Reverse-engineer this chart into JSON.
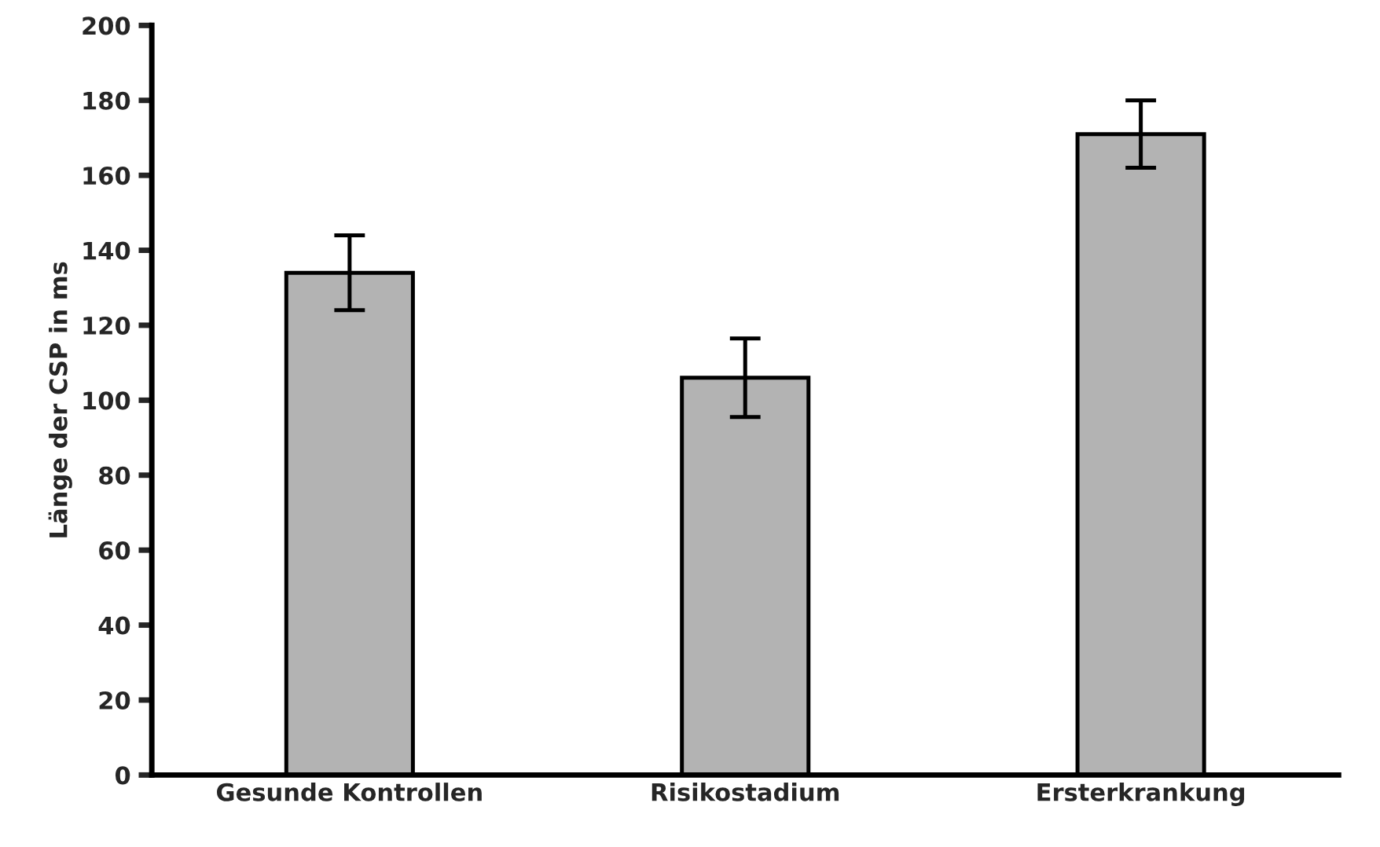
{
  "chart_data": {
    "type": "bar",
    "ylabel": "Länge der CSP in ms",
    "categories": [
      "Gesunde Kontrollen",
      "Risikostadium",
      "Ersterkrankung"
    ],
    "values": [
      134,
      106,
      171
    ],
    "errors": [
      10,
      10.5,
      9
    ],
    "color": "#b3b3b3",
    "ylim": [
      0,
      200
    ],
    "yticks": [
      0,
      20,
      40,
      60,
      80,
      100,
      120,
      140,
      160,
      180,
      200
    ],
    "grid": false
  }
}
